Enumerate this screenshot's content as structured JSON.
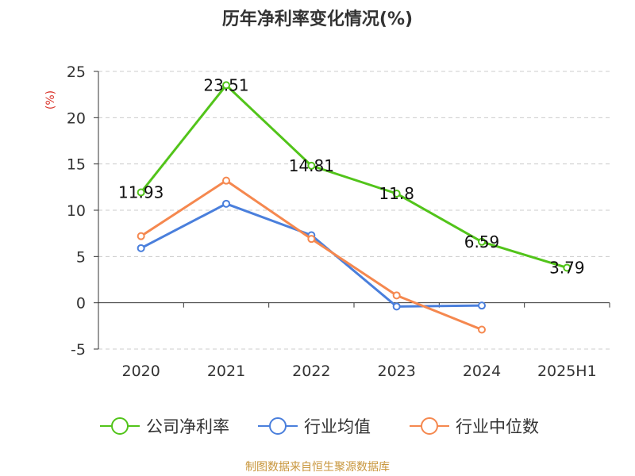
{
  "chart_data": {
    "type": "line",
    "title": "历年净利率变化情况(%)",
    "ylabel": "(%)",
    "categories": [
      "2020",
      "2021",
      "2022",
      "2023",
      "2024",
      "2025H1"
    ],
    "ylim": [
      -5,
      25
    ],
    "yticks": [
      25,
      20,
      15,
      10,
      5,
      0,
      -5
    ],
    "grid": "horizontal-dashed",
    "legend_position": "bottom",
    "series": [
      {
        "name": "公司净利率",
        "color": "#52c41a",
        "values": [
          11.93,
          23.51,
          14.81,
          11.8,
          6.59,
          3.79
        ],
        "labels": [
          "11.93",
          "23.51",
          "14.81",
          "11.8",
          "6.59",
          "3.79"
        ]
      },
      {
        "name": "行业均值",
        "color": "#4a7fdc",
        "values": [
          5.9,
          10.7,
          7.3,
          -0.4,
          -0.3,
          null
        ]
      },
      {
        "name": "行业中位数",
        "color": "#f5884f",
        "values": [
          7.2,
          13.2,
          6.9,
          0.8,
          -2.9,
          null
        ]
      }
    ]
  },
  "source_text": "制图数据来自恒生聚源数据库"
}
